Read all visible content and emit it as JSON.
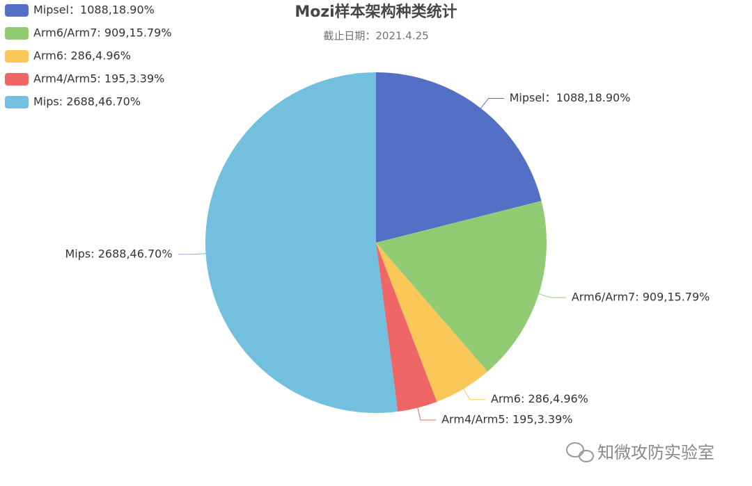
{
  "chart_data": {
    "type": "pie",
    "title": "Mozi样本架构种类统计",
    "subtitle": "截止日期：2021.4.25",
    "values": [
      1088,
      909,
      286,
      195,
      2688
    ],
    "value_labels": [
      "Mipsel：1088,18.90%",
      "Arm6/Arm7: 909,15.79%",
      "Arm6: 286,4.96%",
      "Arm4/Arm5: 195,3.39%",
      "Mips: 2688,46.70%"
    ],
    "colors": [
      "#5470c6",
      "#91cc75",
      "#fac858",
      "#ee6666",
      "#73c0de"
    ],
    "legend": "top-left"
  },
  "watermark": "知微攻防实验室"
}
